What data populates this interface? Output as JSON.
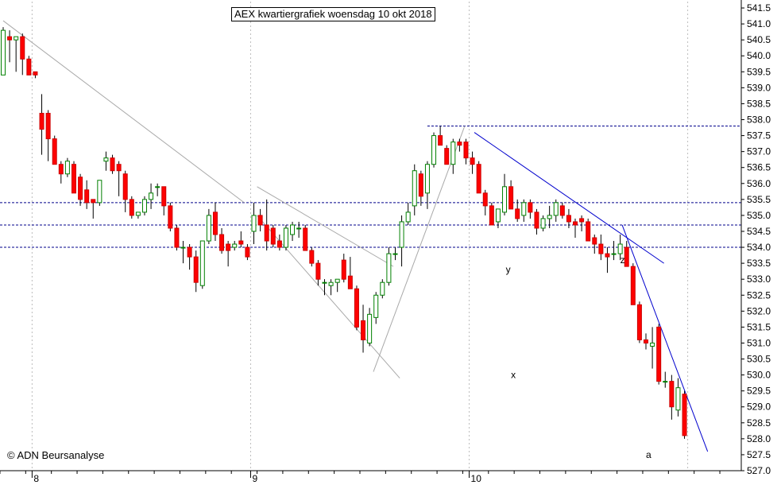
{
  "chart_data": {
    "type": "candlestick",
    "title": "AEX kwartiergrafiek woensdag 10 okt 2018",
    "copyright": "© ADN Beursanalyse",
    "ylim": [
      527.0,
      541.7
    ],
    "y_ticks": [
      "527.0",
      "527.5",
      "528.0",
      "528.5",
      "529.0",
      "529.5",
      "530.0",
      "530.5",
      "531.0",
      "531.5",
      "532.0",
      "532.5",
      "533.0",
      "533.5",
      "534.0",
      "534.5",
      "535.0",
      "535.5",
      "536.0",
      "536.5",
      "537.0",
      "537.5",
      "538.0",
      "538.5",
      "539.0",
      "539.5",
      "540.0",
      "540.5",
      "541.0",
      "541.5"
    ],
    "x_ticks": [
      {
        "label": "8",
        "index": 5
      },
      {
        "label": "9",
        "index": 39
      },
      {
        "label": "10",
        "index": 73
      }
    ],
    "candles": [
      [
        539.4,
        540.9,
        539.4,
        540.8
      ],
      [
        540.6,
        540.8,
        539.8,
        540.5
      ],
      [
        540.5,
        540.6,
        539.5,
        540.6
      ],
      [
        540.6,
        540.7,
        539.4,
        539.9
      ],
      [
        539.9,
        540.0,
        539.4,
        539.4
      ],
      [
        539.5,
        539.5,
        539.3,
        539.4
      ],
      [
        538.2,
        538.8,
        536.9,
        537.7
      ],
      [
        538.2,
        538.3,
        536.7,
        537.4
      ],
      [
        537.4,
        537.5,
        536.6,
        536.6
      ],
      [
        536.6,
        536.7,
        536.0,
        536.3
      ],
      [
        536.3,
        536.8,
        536.2,
        536.7
      ],
      [
        536.6,
        536.7,
        535.7,
        535.7
      ],
      [
        536.2,
        536.3,
        535.3,
        535.5
      ],
      [
        535.8,
        536.1,
        535.2,
        535.4
      ],
      [
        535.5,
        535.5,
        534.9,
        535.4
      ],
      [
        535.4,
        536.1,
        535.3,
        536.1
      ],
      [
        536.7,
        537.0,
        536.4,
        536.8
      ],
      [
        536.8,
        536.9,
        536.3,
        536.4
      ],
      [
        536.6,
        536.7,
        535.6,
        536.4
      ],
      [
        536.3,
        536.4,
        535.1,
        535.5
      ],
      [
        535.5,
        535.6,
        534.9,
        535.0
      ],
      [
        535.0,
        535.1,
        534.9,
        535.1
      ],
      [
        535.1,
        535.6,
        535.0,
        535.5
      ],
      [
        535.5,
        536.0,
        535.2,
        535.7
      ],
      [
        535.9,
        536.0,
        535.6,
        535.9
      ],
      [
        535.9,
        535.9,
        535.0,
        535.3
      ],
      [
        535.3,
        535.4,
        534.5,
        534.6
      ],
      [
        534.6,
        534.7,
        533.9,
        534.0
      ],
      [
        534.0,
        534.2,
        533.5,
        534.0
      ],
      [
        534.0,
        534.1,
        533.3,
        533.7
      ],
      [
        533.7,
        533.9,
        532.6,
        532.9
      ],
      [
        532.8,
        534.2,
        532.7,
        534.2
      ],
      [
        534.2,
        535.2,
        534.1,
        535.0
      ],
      [
        535.1,
        535.4,
        534.2,
        534.4
      ],
      [
        534.4,
        534.6,
        533.8,
        533.9
      ],
      [
        534.1,
        534.2,
        533.4,
        533.9
      ],
      [
        534.0,
        534.2,
        533.9,
        534.1
      ],
      [
        534.2,
        534.5,
        534.0,
        534.1
      ],
      [
        534.0,
        534.1,
        533.6,
        533.7
      ],
      [
        534.5,
        535.4,
        534.1,
        535.0
      ],
      [
        535.0,
        535.2,
        534.5,
        534.7
      ],
      [
        534.7,
        535.5,
        533.9,
        534.2
      ],
      [
        534.6,
        534.7,
        534.0,
        534.1
      ],
      [
        534.2,
        534.4,
        533.9,
        534.0
      ],
      [
        534.0,
        534.7,
        533.9,
        534.6
      ],
      [
        534.4,
        534.8,
        534.2,
        534.7
      ],
      [
        534.6,
        534.8,
        534.3,
        534.6
      ],
      [
        534.6,
        534.7,
        533.9,
        533.9
      ],
      [
        533.9,
        534.0,
        533.4,
        533.5
      ],
      [
        533.5,
        533.6,
        532.8,
        533.0
      ],
      [
        532.9,
        533.0,
        532.5,
        532.9
      ],
      [
        532.8,
        533.0,
        532.5,
        532.9
      ],
      [
        532.9,
        533.0,
        532.6,
        533.0
      ],
      [
        533.6,
        533.8,
        532.9,
        533.0
      ],
      [
        533.1,
        533.7,
        532.8,
        532.7
      ],
      [
        532.7,
        532.8,
        531.4,
        531.5
      ],
      [
        531.7,
        532.2,
        530.7,
        531.1
      ],
      [
        531.0,
        532.1,
        530.9,
        531.9
      ],
      [
        531.8,
        532.6,
        531.6,
        532.5
      ],
      [
        532.5,
        533.0,
        532.4,
        532.9
      ],
      [
        532.9,
        534.0,
        532.8,
        533.8
      ],
      [
        533.8,
        534.0,
        533.6,
        533.8
      ],
      [
        534.0,
        535.0,
        533.4,
        534.8
      ],
      [
        534.8,
        535.4,
        534.7,
        535.1
      ],
      [
        535.3,
        536.6,
        535.0,
        536.4
      ],
      [
        536.3,
        536.4,
        535.3,
        535.6
      ],
      [
        535.7,
        536.7,
        535.2,
        536.6
      ],
      [
        536.6,
        537.6,
        536.5,
        537.5
      ],
      [
        537.5,
        537.8,
        537.2,
        537.2
      ],
      [
        537.1,
        537.2,
        536.6,
        536.6
      ],
      [
        536.6,
        537.4,
        536.3,
        537.3
      ],
      [
        537.3,
        537.4,
        537.0,
        537.2
      ],
      [
        537.3,
        537.4,
        536.6,
        536.8
      ],
      [
        536.8,
        537.0,
        536.3,
        536.6
      ],
      [
        536.6,
        536.7,
        535.7,
        535.7
      ],
      [
        535.7,
        535.8,
        535.0,
        535.3
      ],
      [
        535.3,
        535.4,
        534.7,
        534.7
      ],
      [
        534.8,
        535.2,
        534.6,
        535.2
      ],
      [
        535.1,
        536.3,
        535.0,
        535.9
      ],
      [
        535.9,
        536.1,
        535.3,
        535.2
      ],
      [
        535.2,
        535.5,
        534.8,
        534.9
      ],
      [
        535.0,
        535.5,
        534.8,
        535.4
      ],
      [
        535.4,
        535.5,
        534.9,
        535.1
      ],
      [
        535.1,
        535.2,
        534.4,
        534.6
      ],
      [
        534.6,
        535.0,
        534.5,
        534.9
      ],
      [
        534.9,
        535.3,
        534.6,
        535.0
      ],
      [
        535.0,
        535.5,
        534.8,
        535.4
      ],
      [
        535.3,
        535.4,
        534.9,
        535.0
      ],
      [
        535.0,
        535.2,
        534.6,
        534.8
      ],
      [
        534.8,
        534.9,
        534.3,
        534.7
      ],
      [
        534.9,
        535.0,
        534.5,
        534.8
      ],
      [
        534.8,
        534.9,
        534.2,
        534.2
      ],
      [
        534.3,
        534.4,
        533.8,
        534.1
      ],
      [
        534.1,
        534.4,
        533.6,
        533.8
      ],
      [
        533.8,
        534.0,
        533.2,
        533.7
      ],
      [
        533.8,
        534.2,
        533.6,
        533.8
      ],
      [
        533.8,
        534.4,
        533.6,
        534.1
      ],
      [
        534.0,
        534.2,
        533.5,
        533.4
      ],
      [
        533.4,
        533.5,
        532.2,
        532.2
      ],
      [
        532.2,
        532.3,
        531.0,
        531.1
      ],
      [
        531.1,
        531.3,
        530.8,
        531.0
      ],
      [
        530.9,
        531.5,
        530.2,
        531.0
      ],
      [
        531.5,
        531.6,
        529.7,
        529.8
      ],
      [
        529.8,
        530.1,
        529.6,
        529.8
      ],
      [
        529.8,
        530.0,
        528.6,
        529.0
      ],
      [
        528.9,
        529.9,
        528.7,
        529.6
      ],
      [
        529.4,
        529.5,
        528.0,
        528.1
      ]
    ],
    "hlines": [
      537.8,
      535.4,
      534.7,
      534.0
    ],
    "trend_labels": [
      {
        "text": "x",
        "x": 79.0,
        "y": 529.9
      },
      {
        "text": "y",
        "x": 78.2,
        "y": 533.2
      },
      {
        "text": "z",
        "x": 96.0,
        "y": 533.5
      },
      {
        "text": "a",
        "x": 100.0,
        "y": 527.4
      }
    ],
    "colors": {
      "up": "#ffffff",
      "up_edge": "#008000",
      "down": "#ff0000",
      "down_edge": "#cc0000",
      "hline": "#00008b",
      "trend_blue": "#0000cd",
      "trend_gray": "#a9a9a9",
      "grid": "#bdbdbd"
    }
  }
}
